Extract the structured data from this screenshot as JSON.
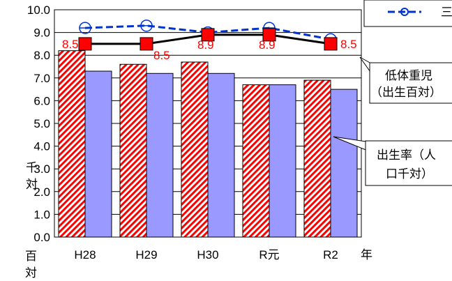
{
  "chart_data": {
    "type": "bar",
    "categories": [
      "H28",
      "H29",
      "H30",
      "R元",
      "R2"
    ],
    "ylim": [
      0,
      10
    ],
    "yticks": [
      "0.0",
      "1.0",
      "2.0",
      "3.0",
      "4.0",
      "5.0",
      "6.0",
      "7.0",
      "8.0",
      "9.0",
      "10.0"
    ],
    "ylabel_left": "千対",
    "ylabel_right": "百対",
    "xlabel": "年",
    "grid": true,
    "series": [
      {
        "name": "低体重児（出生百対）",
        "kind": "bar",
        "pattern": "red-diagonal-hatch",
        "values": [
          8.2,
          7.6,
          7.7,
          6.7,
          6.9
        ]
      },
      {
        "name": "出生率（人口千対）",
        "kind": "bar",
        "color": "#9999ff",
        "values": [
          7.3,
          7.2,
          7.2,
          6.7,
          6.5
        ]
      },
      {
        "kind": "line",
        "color": "#000000",
        "marker": "red-square",
        "values": [
          8.5,
          8.5,
          8.9,
          8.9,
          8.5
        ],
        "labels": [
          "8.5",
          "8.5",
          "8.9",
          "8.9",
          "8.5"
        ],
        "label_color": "#ff0000"
      },
      {
        "kind": "line",
        "color": "#0033cc",
        "style": "dashed",
        "marker": "open-circle",
        "values": [
          9.2,
          9.3,
          9.0,
          9.2,
          8.7
        ]
      }
    ],
    "legend": {
      "placement": "top-right",
      "partial_text": "三"
    },
    "callouts": [
      {
        "text_lines": [
          "低体重児",
          "（出生百対）"
        ]
      },
      {
        "text_lines": [
          "出生率（人",
          "口千対）"
        ]
      }
    ]
  },
  "colors": {
    "hatch_red": "#ff0000",
    "bar_blue": "#9999ff",
    "line_black": "#000000",
    "line_blue": "#0033cc",
    "label_red": "#ff0000",
    "plot_border": "#000000",
    "grid": "#000000"
  }
}
